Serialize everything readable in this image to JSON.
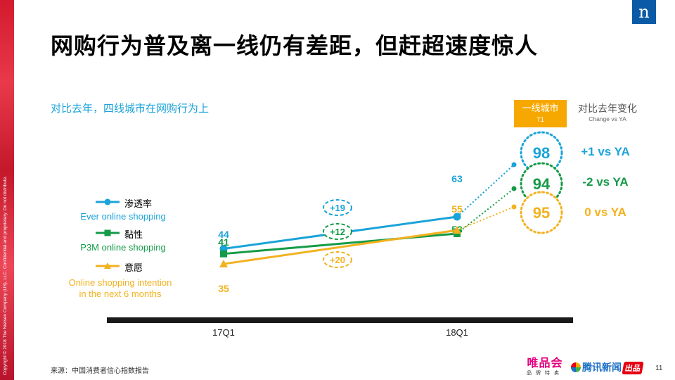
{
  "title": "网购行为普及离一线仍有差距，但赶超速度惊人",
  "subtitle": "对比去年，四线城市在网购行为上",
  "copyright": "Copyright © 2018 The Nielsen Company (US), LLC. Confidential and proprietary. Do not distribute.",
  "logo_glyph": "n",
  "source": "来源：中国消费者信心指数报告",
  "page_number": "11",
  "brand_vip": {
    "name": "唯品会",
    "tagline": "品牌特卖"
  },
  "brand_tencent": {
    "name": "腾讯新闻",
    "badge": "出品"
  },
  "t1_box": {
    "label": "一线城市",
    "sub": "T1"
  },
  "change_header": {
    "label": "对比去年变化",
    "sub": "Change vs YA"
  },
  "legend": [
    {
      "label": "渗透率",
      "sub": "Ever online shopping"
    },
    {
      "label": "黏性",
      "sub": "P3M online shopping"
    },
    {
      "label": "意愿",
      "sub": "Online shopping intention\nin the next 6 months"
    }
  ],
  "colors": {
    "penetration": "#1aa3d9",
    "stickiness": "#159a48",
    "intention": "#f2b21f",
    "axis": "#1a1a1a",
    "t1_box": "#f7a800"
  },
  "chart_data": {
    "type": "line",
    "categories": [
      "17Q1",
      "18Q1"
    ],
    "series": [
      {
        "name": "渗透率",
        "values": [
          44,
          63
        ],
        "growth": "+19",
        "t1_value": 98,
        "t1_change": "+1 vs YA",
        "marker": "circle"
      },
      {
        "name": "黏性",
        "values": [
          41,
          53
        ],
        "growth": "+12",
        "t1_value": 94,
        "t1_change": "-2 vs YA",
        "marker": "square"
      },
      {
        "name": "意愿",
        "values": [
          35,
          55
        ],
        "growth": "+20",
        "t1_value": 95,
        "t1_change": "0 vs YA",
        "marker": "triangle"
      }
    ]
  }
}
